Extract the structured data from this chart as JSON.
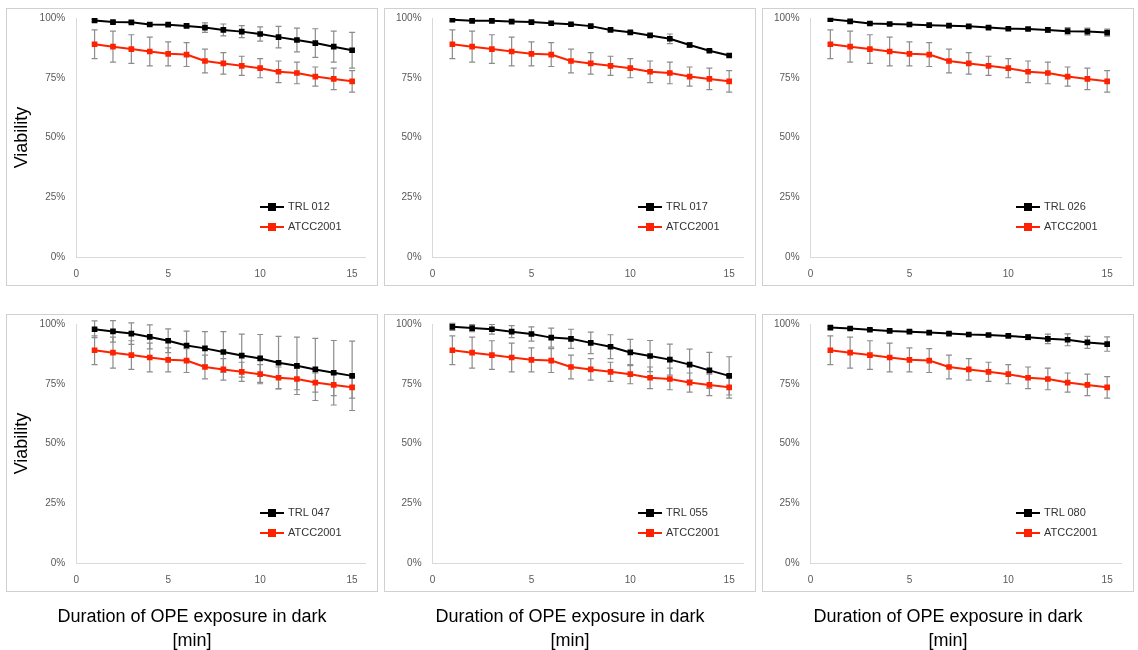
{
  "chart_data": [
    {
      "type": "line",
      "ylabel": "Viability",
      "x": [
        1,
        2,
        3,
        4,
        5,
        6,
        7,
        8,
        9,
        10,
        11,
        12,
        13,
        14,
        15
      ],
      "xlim": [
        0,
        15.7
      ],
      "xticks": [
        0,
        5,
        10,
        15
      ],
      "ylim": [
        0,
        100
      ],
      "yticks": [
        {
          "value": 0,
          "label": "0%"
        },
        {
          "value": 25,
          "label": "25%"
        },
        {
          "value": 50,
          "label": "50%"
        },
        {
          "value": 75,
          "label": "75%"
        },
        {
          "value": 100,
          "label": "100%"
        }
      ],
      "grid": false,
      "legend": "bottom right",
      "marker": "square",
      "line_style": "solid",
      "series": [
        {
          "name": "TRL 012",
          "color": "#000000",
          "values": [
            99,
            98.3,
            98.2,
            97.3,
            97.2,
            96.7,
            96,
            95,
            94.3,
            93.3,
            92,
            90.8,
            89.5,
            88,
            86.5
          ],
          "errors": [
            0.5,
            0.5,
            0.5,
            0.5,
            0.5,
            0.7,
            2,
            2.5,
            2.5,
            3,
            4.5,
            5,
            6,
            6.5,
            7.5
          ]
        },
        {
          "name": "ATCC2001",
          "color": "#ff2200",
          "values": [
            89,
            88,
            87,
            86,
            85,
            84.7,
            82,
            81,
            80,
            79,
            77.5,
            77,
            75.5,
            74.5,
            73.5
          ],
          "errors": [
            6,
            6.5,
            6,
            6,
            5,
            5,
            5,
            4.5,
            4,
            4,
            4.5,
            4.5,
            4,
            4.5,
            4.5
          ]
        }
      ]
    },
    {
      "type": "line",
      "x": [
        1,
        2,
        3,
        4,
        5,
        6,
        7,
        8,
        9,
        10,
        11,
        12,
        13,
        14,
        15
      ],
      "xlim": [
        0,
        15.7
      ],
      "xticks": [
        0,
        5,
        10,
        15
      ],
      "ylim": [
        0,
        100
      ],
      "yticks": [
        {
          "value": 0,
          "label": "0%"
        },
        {
          "value": 25,
          "label": "25%"
        },
        {
          "value": 50,
          "label": "50%"
        },
        {
          "value": 75,
          "label": "75%"
        },
        {
          "value": 100,
          "label": "100%"
        }
      ],
      "grid": false,
      "legend": "bottom right",
      "marker": "square",
      "line_style": "solid",
      "series": [
        {
          "name": "TRL 017",
          "color": "#000000",
          "values": [
            99.3,
            98.8,
            98.8,
            98.5,
            98.3,
            97.8,
            97.4,
            96.6,
            95,
            94,
            92.7,
            91.3,
            88.7,
            86.3,
            84.3
          ],
          "errors": [
            0.5,
            0.5,
            0.5,
            0.5,
            0.5,
            0.5,
            0.5,
            0.5,
            0.5,
            0.5,
            0.5,
            2,
            1,
            0.5,
            0.5
          ]
        },
        {
          "name": "ATCC2001",
          "color": "#ff2200",
          "values": [
            89,
            88,
            87,
            86,
            85,
            84.7,
            82,
            81,
            80,
            79,
            77.5,
            77,
            75.5,
            74.5,
            73.5
          ],
          "errors": [
            6,
            6.5,
            6,
            6,
            5,
            5,
            5,
            4.5,
            4,
            4,
            4.5,
            4.5,
            4,
            4.5,
            4.5
          ]
        }
      ]
    },
    {
      "type": "line",
      "x": [
        1,
        2,
        3,
        4,
        5,
        6,
        7,
        8,
        9,
        10,
        11,
        12,
        13,
        14,
        15
      ],
      "xlim": [
        0,
        15.7
      ],
      "xticks": [
        0,
        5,
        10,
        15
      ],
      "ylim": [
        0,
        100
      ],
      "yticks": [
        {
          "value": 0,
          "label": "0%"
        },
        {
          "value": 25,
          "label": "25%"
        },
        {
          "value": 50,
          "label": "50%"
        },
        {
          "value": 75,
          "label": "75%"
        },
        {
          "value": 100,
          "label": "100%"
        }
      ],
      "grid": false,
      "legend": "bottom right",
      "marker": "square",
      "line_style": "solid",
      "series": [
        {
          "name": "TRL 026",
          "color": "#000000",
          "values": [
            99.5,
            98.6,
            97.7,
            97.5,
            97.3,
            97,
            96.8,
            96.5,
            96,
            95.5,
            95.4,
            95,
            94.5,
            94.3,
            93.9
          ],
          "errors": [
            0.5,
            0.5,
            0.5,
            0.5,
            0.5,
            0.5,
            0.5,
            0.5,
            0.5,
            0.5,
            0.5,
            1,
            1.5,
            1.5,
            1.5
          ]
        },
        {
          "name": "ATCC2001",
          "color": "#ff2200",
          "values": [
            89,
            88,
            87,
            86,
            85,
            84.7,
            82,
            81,
            80,
            79,
            77.5,
            77,
            75.5,
            74.5,
            73.5
          ],
          "errors": [
            6,
            6.5,
            6,
            6,
            5,
            5,
            5,
            4.5,
            4,
            4,
            4.5,
            4.5,
            4,
            4.5,
            4.5
          ]
        }
      ]
    },
    {
      "type": "line",
      "ylabel": "Viability",
      "xlabel": "Duration of OPE exposure in dark [min]",
      "x": [
        1,
        2,
        3,
        4,
        5,
        6,
        7,
        8,
        9,
        10,
        11,
        12,
        13,
        14,
        15
      ],
      "xlim": [
        0,
        15.7
      ],
      "xticks": [
        0,
        5,
        10,
        15
      ],
      "ylim": [
        0,
        100
      ],
      "yticks": [
        {
          "value": 0,
          "label": "0%"
        },
        {
          "value": 25,
          "label": "25%"
        },
        {
          "value": 50,
          "label": "50%"
        },
        {
          "value": 75,
          "label": "75%"
        },
        {
          "value": 100,
          "label": "100%"
        }
      ],
      "grid": false,
      "legend": "bottom right",
      "marker": "square",
      "line_style": "solid",
      "series": [
        {
          "name": "TRL 047",
          "color": "#000000",
          "values": [
            97.8,
            96.9,
            96,
            94.6,
            93,
            91,
            89.8,
            88.3,
            86.8,
            85.6,
            83.8,
            82.5,
            81,
            79.6,
            78.3
          ],
          "errors": [
            3.5,
            4.5,
            4.5,
            5,
            5,
            6,
            7,
            8.5,
            9,
            10,
            11,
            12,
            13,
            13.5,
            14.5
          ]
        },
        {
          "name": "ATCC2001",
          "color": "#ff2200",
          "values": [
            89,
            88,
            87,
            86,
            85,
            84.7,
            82,
            81,
            80,
            79,
            77.5,
            77,
            75.5,
            74.5,
            73.5
          ],
          "errors": [
            6,
            6.5,
            6,
            6,
            5,
            5,
            5,
            4.5,
            4,
            4,
            4.5,
            4.5,
            4,
            4.5,
            4.5
          ]
        }
      ]
    },
    {
      "type": "line",
      "xlabel": "Duration of OPE exposure in dark [min]",
      "x": [
        1,
        2,
        3,
        4,
        5,
        6,
        7,
        8,
        9,
        10,
        11,
        12,
        13,
        14,
        15
      ],
      "xlim": [
        0,
        15.7
      ],
      "xticks": [
        0,
        5,
        10,
        15
      ],
      "ylim": [
        0,
        100
      ],
      "yticks": [
        {
          "value": 0,
          "label": "0%"
        },
        {
          "value": 25,
          "label": "25%"
        },
        {
          "value": 50,
          "label": "50%"
        },
        {
          "value": 75,
          "label": "75%"
        },
        {
          "value": 100,
          "label": "100%"
        }
      ],
      "grid": false,
      "legend": "bottom right",
      "marker": "square",
      "line_style": "solid",
      "series": [
        {
          "name": "TRL 055",
          "color": "#000000",
          "values": [
            98.8,
            98.3,
            97.8,
            96.8,
            95.8,
            94.3,
            93.8,
            92.1,
            90.5,
            88.1,
            86.6,
            85.1,
            83,
            80.6,
            78.3
          ],
          "errors": [
            1.5,
            1.5,
            2,
            2.5,
            3,
            4,
            4,
            4.5,
            5,
            5.5,
            6.5,
            6.5,
            6.5,
            7.5,
            8
          ]
        },
        {
          "name": "ATCC2001",
          "color": "#ff2200",
          "values": [
            89,
            88,
            87,
            86,
            85,
            84.7,
            82,
            81,
            80,
            79,
            77.5,
            77,
            75.5,
            74.5,
            73.5
          ],
          "errors": [
            6,
            6.5,
            6,
            6,
            5,
            5,
            5,
            4.5,
            4,
            4,
            4.5,
            4.5,
            4,
            4.5,
            4.5
          ]
        }
      ]
    },
    {
      "type": "line",
      "xlabel": "Duration of OPE exposure in dark [min]",
      "x": [
        1,
        2,
        3,
        4,
        5,
        6,
        7,
        8,
        9,
        10,
        11,
        12,
        13,
        14,
        15
      ],
      "xlim": [
        0,
        15.7
      ],
      "xticks": [
        0,
        5,
        10,
        15
      ],
      "ylim": [
        0,
        100
      ],
      "yticks": [
        {
          "value": 0,
          "label": "0%"
        },
        {
          "value": 25,
          "label": "25%"
        },
        {
          "value": 50,
          "label": "50%"
        },
        {
          "value": 75,
          "label": "75%"
        },
        {
          "value": 100,
          "label": "100%"
        }
      ],
      "grid": false,
      "legend": "bottom right",
      "marker": "square",
      "line_style": "solid",
      "series": [
        {
          "name": "TRL 080",
          "color": "#000000",
          "values": [
            98.5,
            98.1,
            97.6,
            97.1,
            96.8,
            96.4,
            96,
            95.6,
            95.4,
            95,
            94.5,
            93.8,
            93.4,
            92.3,
            91.6
          ],
          "errors": [
            0.5,
            0.5,
            0.5,
            0.5,
            0.5,
            0.5,
            0.5,
            0.5,
            0.5,
            0.5,
            1,
            2,
            2.5,
            2.5,
            3
          ]
        },
        {
          "name": "ATCC2001",
          "color": "#ff2200",
          "values": [
            89,
            88,
            87,
            86,
            85,
            84.7,
            82,
            81,
            80,
            79,
            77.5,
            77,
            75.5,
            74.5,
            73.5
          ],
          "errors": [
            6,
            6.5,
            6,
            6,
            5,
            5,
            5,
            4.5,
            4,
            4,
            4.5,
            4.5,
            4,
            4.5,
            4.5
          ]
        }
      ]
    }
  ]
}
